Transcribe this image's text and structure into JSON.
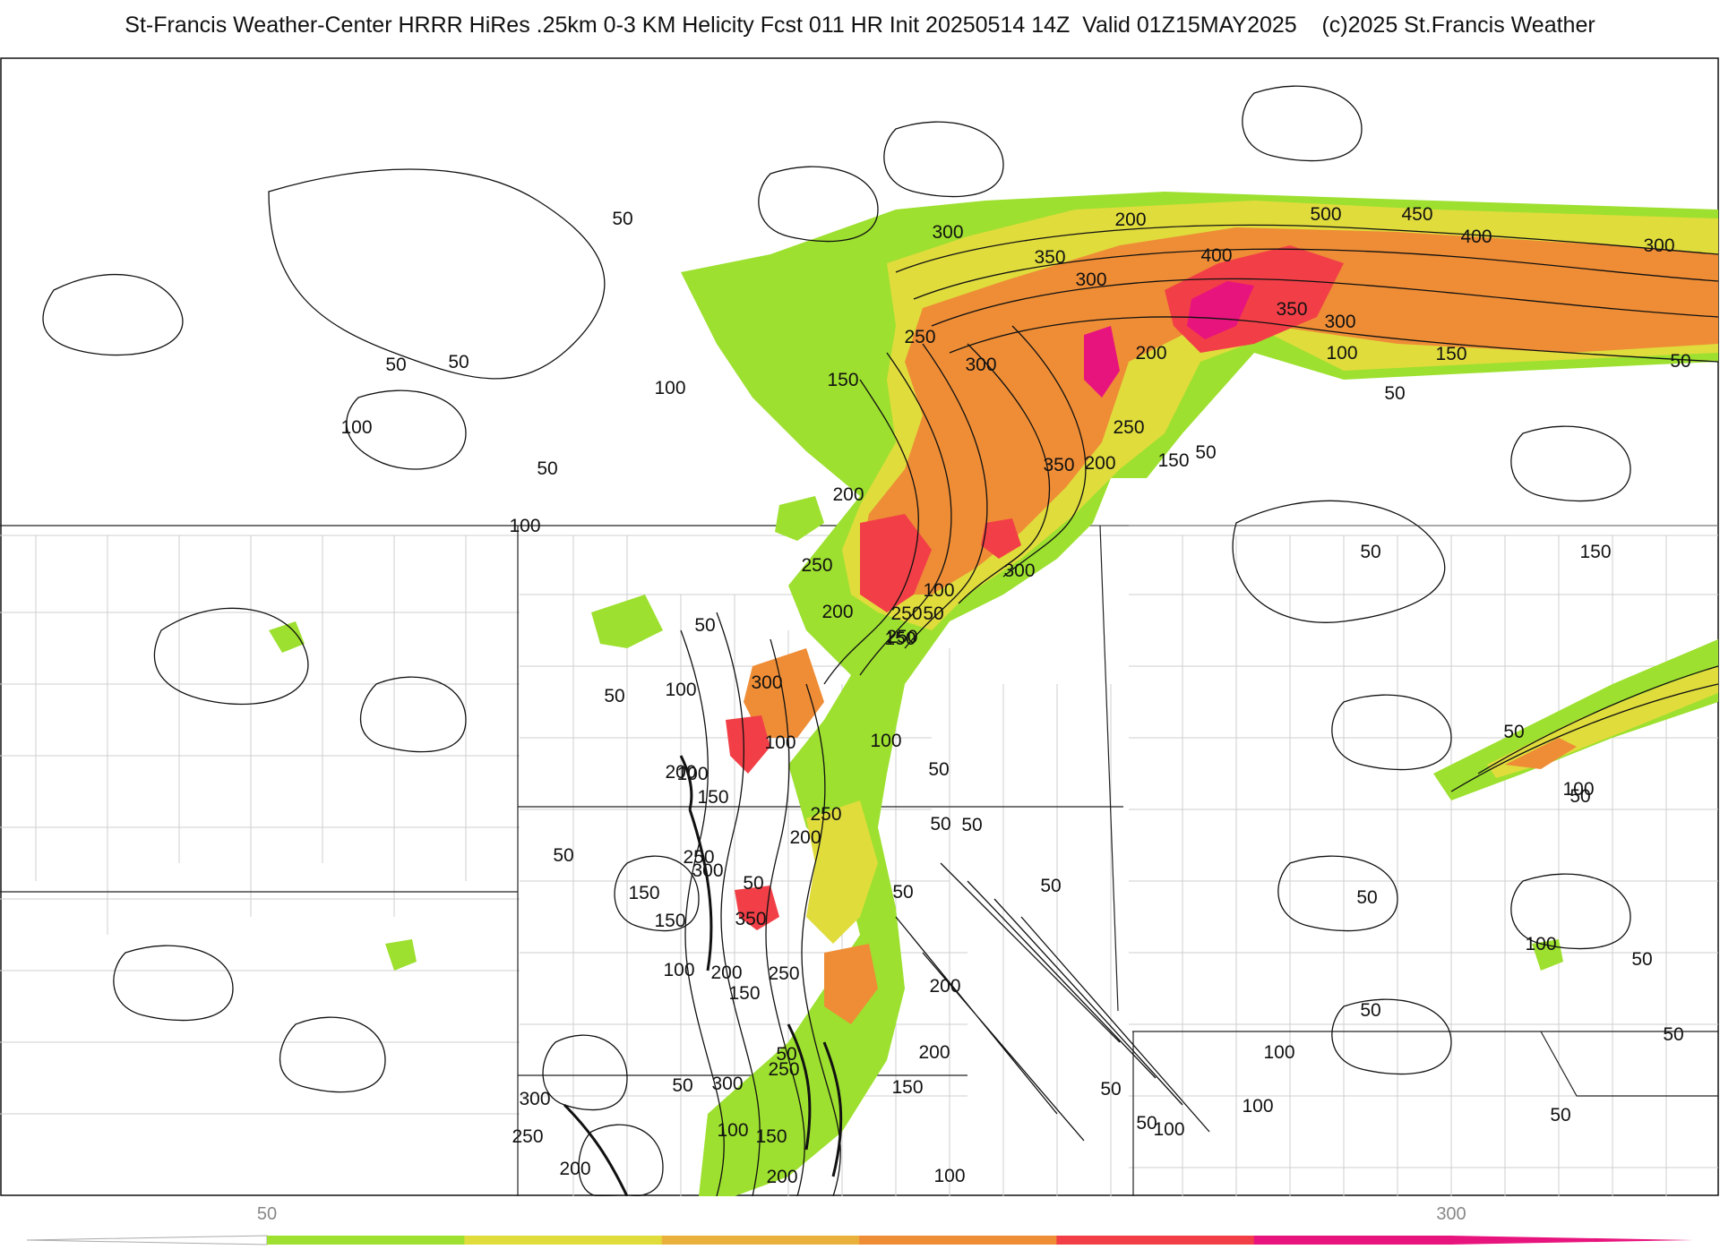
{
  "header": {
    "title": "St-Francis Weather-Center HRRR HiRes .25km 0-3 KM Helicity Fcst 011 HR Init 20250514 14Z  Valid 01Z15MAY2025    (c)2025 St.Francis Weather"
  },
  "colors": {
    "green": "#9de02f",
    "yellow": "#e0dc3c",
    "light_orange": "#e9b13c",
    "orange": "#ee8d36",
    "dark_orange": "#f0692e",
    "red": "#f23f47",
    "magenta": "#e8147e",
    "contour": "#111111",
    "borders": "#c8c8c8",
    "state_lines": "#222222"
  },
  "contour_labels": [
    {
      "text": "50"
    },
    {
      "text": "300"
    },
    {
      "text": "350"
    },
    {
      "text": "300"
    },
    {
      "text": "200"
    },
    {
      "text": "500"
    },
    {
      "text": "450"
    },
    {
      "text": "400"
    },
    {
      "text": "300"
    },
    {
      "text": "400"
    },
    {
      "text": "50"
    },
    {
      "text": "50"
    },
    {
      "text": "250"
    },
    {
      "text": "300"
    },
    {
      "text": "100"
    },
    {
      "text": "150"
    },
    {
      "text": "300"
    },
    {
      "text": "350"
    },
    {
      "text": "200"
    },
    {
      "text": "100"
    },
    {
      "text": "150"
    },
    {
      "text": "50"
    },
    {
      "text": "50"
    },
    {
      "text": "250"
    },
    {
      "text": "50"
    },
    {
      "text": "150"
    },
    {
      "text": "200"
    },
    {
      "text": "350"
    },
    {
      "text": "200"
    },
    {
      "text": "100"
    },
    {
      "text": "100"
    },
    {
      "text": "250"
    },
    {
      "text": "300"
    },
    {
      "text": "50"
    },
    {
      "text": "50"
    },
    {
      "text": "150"
    },
    {
      "text": "250"
    },
    {
      "text": "200"
    },
    {
      "text": "250"
    },
    {
      "text": "100"
    },
    {
      "text": "50"
    },
    {
      "text": "150"
    },
    {
      "text": "50"
    },
    {
      "text": "300"
    },
    {
      "text": "100"
    },
    {
      "text": "50"
    },
    {
      "text": "50"
    },
    {
      "text": "100"
    },
    {
      "text": "200"
    },
    {
      "text": "100"
    },
    {
      "text": "100"
    },
    {
      "text": "50"
    },
    {
      "text": "50"
    },
    {
      "text": "100"
    },
    {
      "text": "50"
    },
    {
      "text": "150"
    },
    {
      "text": "250"
    },
    {
      "text": "200"
    },
    {
      "text": "50"
    },
    {
      "text": "50"
    },
    {
      "text": "250"
    },
    {
      "text": "300"
    },
    {
      "text": "150"
    },
    {
      "text": "50"
    },
    {
      "text": "100"
    },
    {
      "text": "50"
    },
    {
      "text": "50"
    },
    {
      "text": "150"
    },
    {
      "text": "350"
    },
    {
      "text": "200"
    },
    {
      "text": "50"
    },
    {
      "text": "100"
    },
    {
      "text": "200"
    },
    {
      "text": "250"
    },
    {
      "text": "150"
    },
    {
      "text": "50"
    },
    {
      "text": "200"
    },
    {
      "text": "50"
    },
    {
      "text": "250"
    },
    {
      "text": "300"
    },
    {
      "text": "150"
    },
    {
      "text": "100"
    },
    {
      "text": "50"
    },
    {
      "text": "100"
    },
    {
      "text": "50"
    },
    {
      "text": "300"
    },
    {
      "text": "50"
    },
    {
      "text": "50"
    },
    {
      "text": "250"
    },
    {
      "text": "100"
    },
    {
      "text": "150"
    },
    {
      "text": "200"
    },
    {
      "text": "200"
    },
    {
      "text": "100"
    },
    {
      "text": "50"
    },
    {
      "text": "50"
    },
    {
      "text": "100"
    }
  ],
  "colorbar": {
    "tick_labels": [
      "50",
      "300"
    ],
    "bins": [
      {
        "color": "#9de02f"
      },
      {
        "color": "#e0dc3c"
      },
      {
        "color": "#e9b13c"
      },
      {
        "color": "#ee8d36"
      },
      {
        "color": "#f23f47"
      },
      {
        "color": "#e8147e"
      }
    ]
  }
}
